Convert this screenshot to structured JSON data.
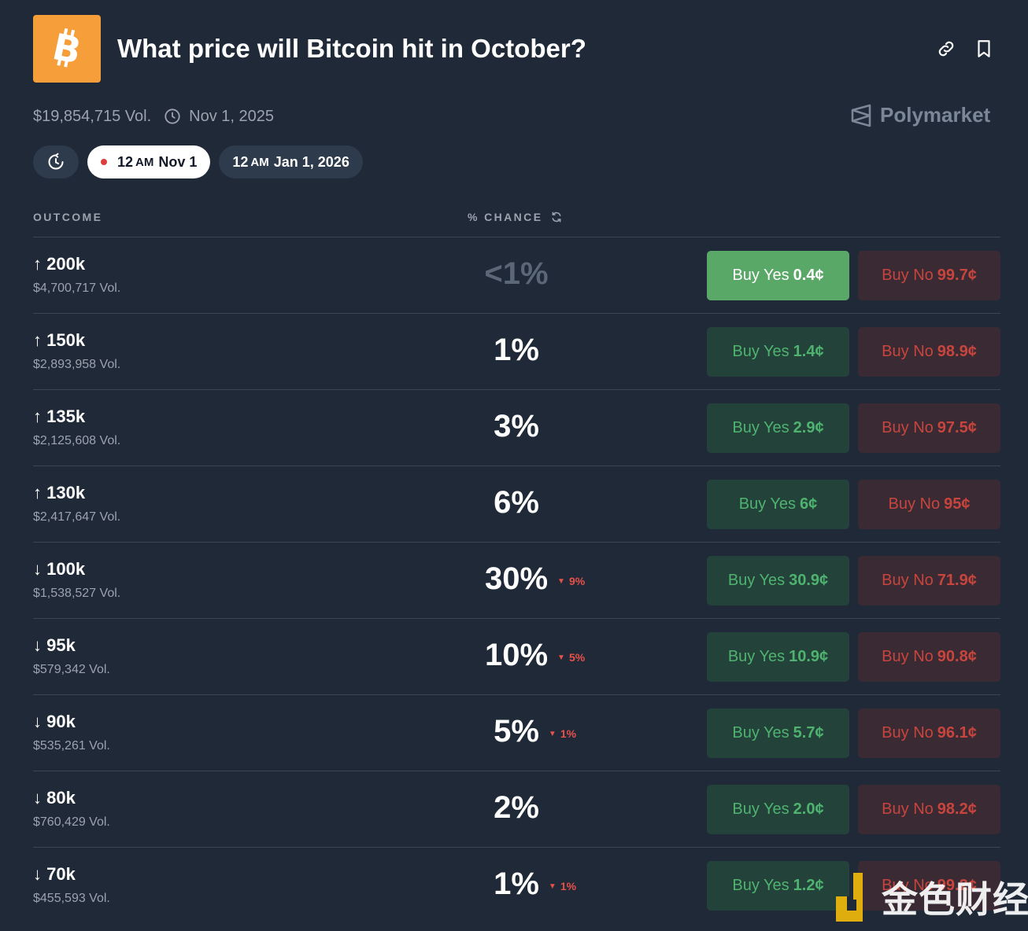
{
  "header": {
    "title": "What price will Bitcoin hit in October?",
    "logo_icon": "bitcoin-icon",
    "link_icon": "link-icon",
    "bookmark_icon": "bookmark-icon"
  },
  "meta": {
    "volume": "$19,854,715 Vol.",
    "date": "Nov 1, 2025"
  },
  "brand": {
    "name": "Polymarket"
  },
  "chips": {
    "active": {
      "time": "12",
      "ampm": "AM",
      "date": "Nov 1"
    },
    "inactive": {
      "time": "12",
      "ampm": "AM",
      "date": "Jan 1, 2026"
    }
  },
  "columns": {
    "outcome": "OUTCOME",
    "chance": "% CHANCE"
  },
  "outcomes": [
    {
      "name": "↑ 200k",
      "volume": "$4,700,717 Vol.",
      "chance": "<1%",
      "delta": "",
      "yes_label": "Buy Yes",
      "yes_price": "0.4¢",
      "no_label": "Buy No",
      "no_price": "99.7¢"
    },
    {
      "name": "↑ 150k",
      "volume": "$2,893,958 Vol.",
      "chance": "1%",
      "delta": "",
      "yes_label": "Buy Yes",
      "yes_price": "1.4¢",
      "no_label": "Buy No",
      "no_price": "98.9¢"
    },
    {
      "name": "↑ 135k",
      "volume": "$2,125,608 Vol.",
      "chance": "3%",
      "delta": "",
      "yes_label": "Buy Yes",
      "yes_price": "2.9¢",
      "no_label": "Buy No",
      "no_price": "97.5¢"
    },
    {
      "name": "↑ 130k",
      "volume": "$2,417,647 Vol.",
      "chance": "6%",
      "delta": "",
      "yes_label": "Buy Yes",
      "yes_price": "6¢",
      "no_label": "Buy No",
      "no_price": "95¢"
    },
    {
      "name": "↓ 100k",
      "volume": "$1,538,527 Vol.",
      "chance": "30%",
      "delta": "9%",
      "yes_label": "Buy Yes",
      "yes_price": "30.9¢",
      "no_label": "Buy No",
      "no_price": "71.9¢"
    },
    {
      "name": "↓ 95k",
      "volume": "$579,342 Vol.",
      "chance": "10%",
      "delta": "5%",
      "yes_label": "Buy Yes",
      "yes_price": "10.9¢",
      "no_label": "Buy No",
      "no_price": "90.8¢"
    },
    {
      "name": "↓ 90k",
      "volume": "$535,261 Vol.",
      "chance": "5%",
      "delta": "1%",
      "yes_label": "Buy Yes",
      "yes_price": "5.7¢",
      "no_label": "Buy No",
      "no_price": "96.1¢"
    },
    {
      "name": "↓ 80k",
      "volume": "$760,429 Vol.",
      "chance": "2%",
      "delta": "",
      "yes_label": "Buy Yes",
      "yes_price": "2.0¢",
      "no_label": "Buy No",
      "no_price": "98.2¢"
    },
    {
      "name": "↓ 70k",
      "volume": "$455,593 Vol.",
      "chance": "1%",
      "delta": "1%",
      "yes_label": "Buy Yes",
      "yes_price": "1.2¢",
      "no_label": "Buy No",
      "no_price": "99.2¢"
    }
  ],
  "watermark": {
    "text": "金色财经"
  },
  "colors": {
    "background": "#1f2937",
    "yes": "#4fb36f",
    "no": "#c8453e",
    "accent_orange": "#f59e3a"
  }
}
